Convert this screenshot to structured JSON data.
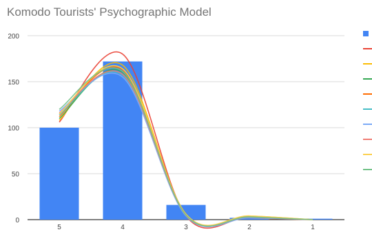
{
  "chart_data": {
    "type": "bar",
    "title": "Komodo Tourists' Psychographic Model",
    "xlabel": "",
    "ylabel": "",
    "categories": [
      "5",
      "4",
      "3",
      "2",
      "1"
    ],
    "ylim": [
      0,
      200
    ],
    "yticks": [
      0,
      50,
      100,
      150,
      200
    ],
    "grid": true,
    "legend": "right",
    "series": [
      {
        "values": [
          100,
          172,
          16,
          2,
          1
        ],
        "color": "#4285f4",
        "kind": "bar"
      }
    ],
    "lines": [
      {
        "values": [
          106,
          180,
          4,
          3,
          0
        ],
        "color": "#ea4335"
      },
      {
        "values": [
          108,
          168,
          5,
          4,
          0
        ],
        "color": "#fbbc04"
      },
      {
        "values": [
          110,
          160,
          5,
          3,
          0
        ],
        "color": "#34a853"
      },
      {
        "values": [
          112,
          163,
          6,
          2,
          0
        ],
        "color": "#ff6d01"
      },
      {
        "values": [
          114,
          157,
          5,
          3,
          0
        ],
        "color": "#46bdc6"
      },
      {
        "values": [
          118,
          155,
          4,
          2,
          0
        ],
        "color": "#7baaf7"
      },
      {
        "values": [
          116,
          158,
          5,
          3,
          0
        ],
        "color": "#f07b72"
      },
      {
        "values": [
          115,
          164,
          6,
          4,
          0
        ],
        "color": "#fcd04f"
      },
      {
        "values": [
          120,
          161,
          5,
          3,
          0
        ],
        "color": "#71c287"
      }
    ]
  }
}
